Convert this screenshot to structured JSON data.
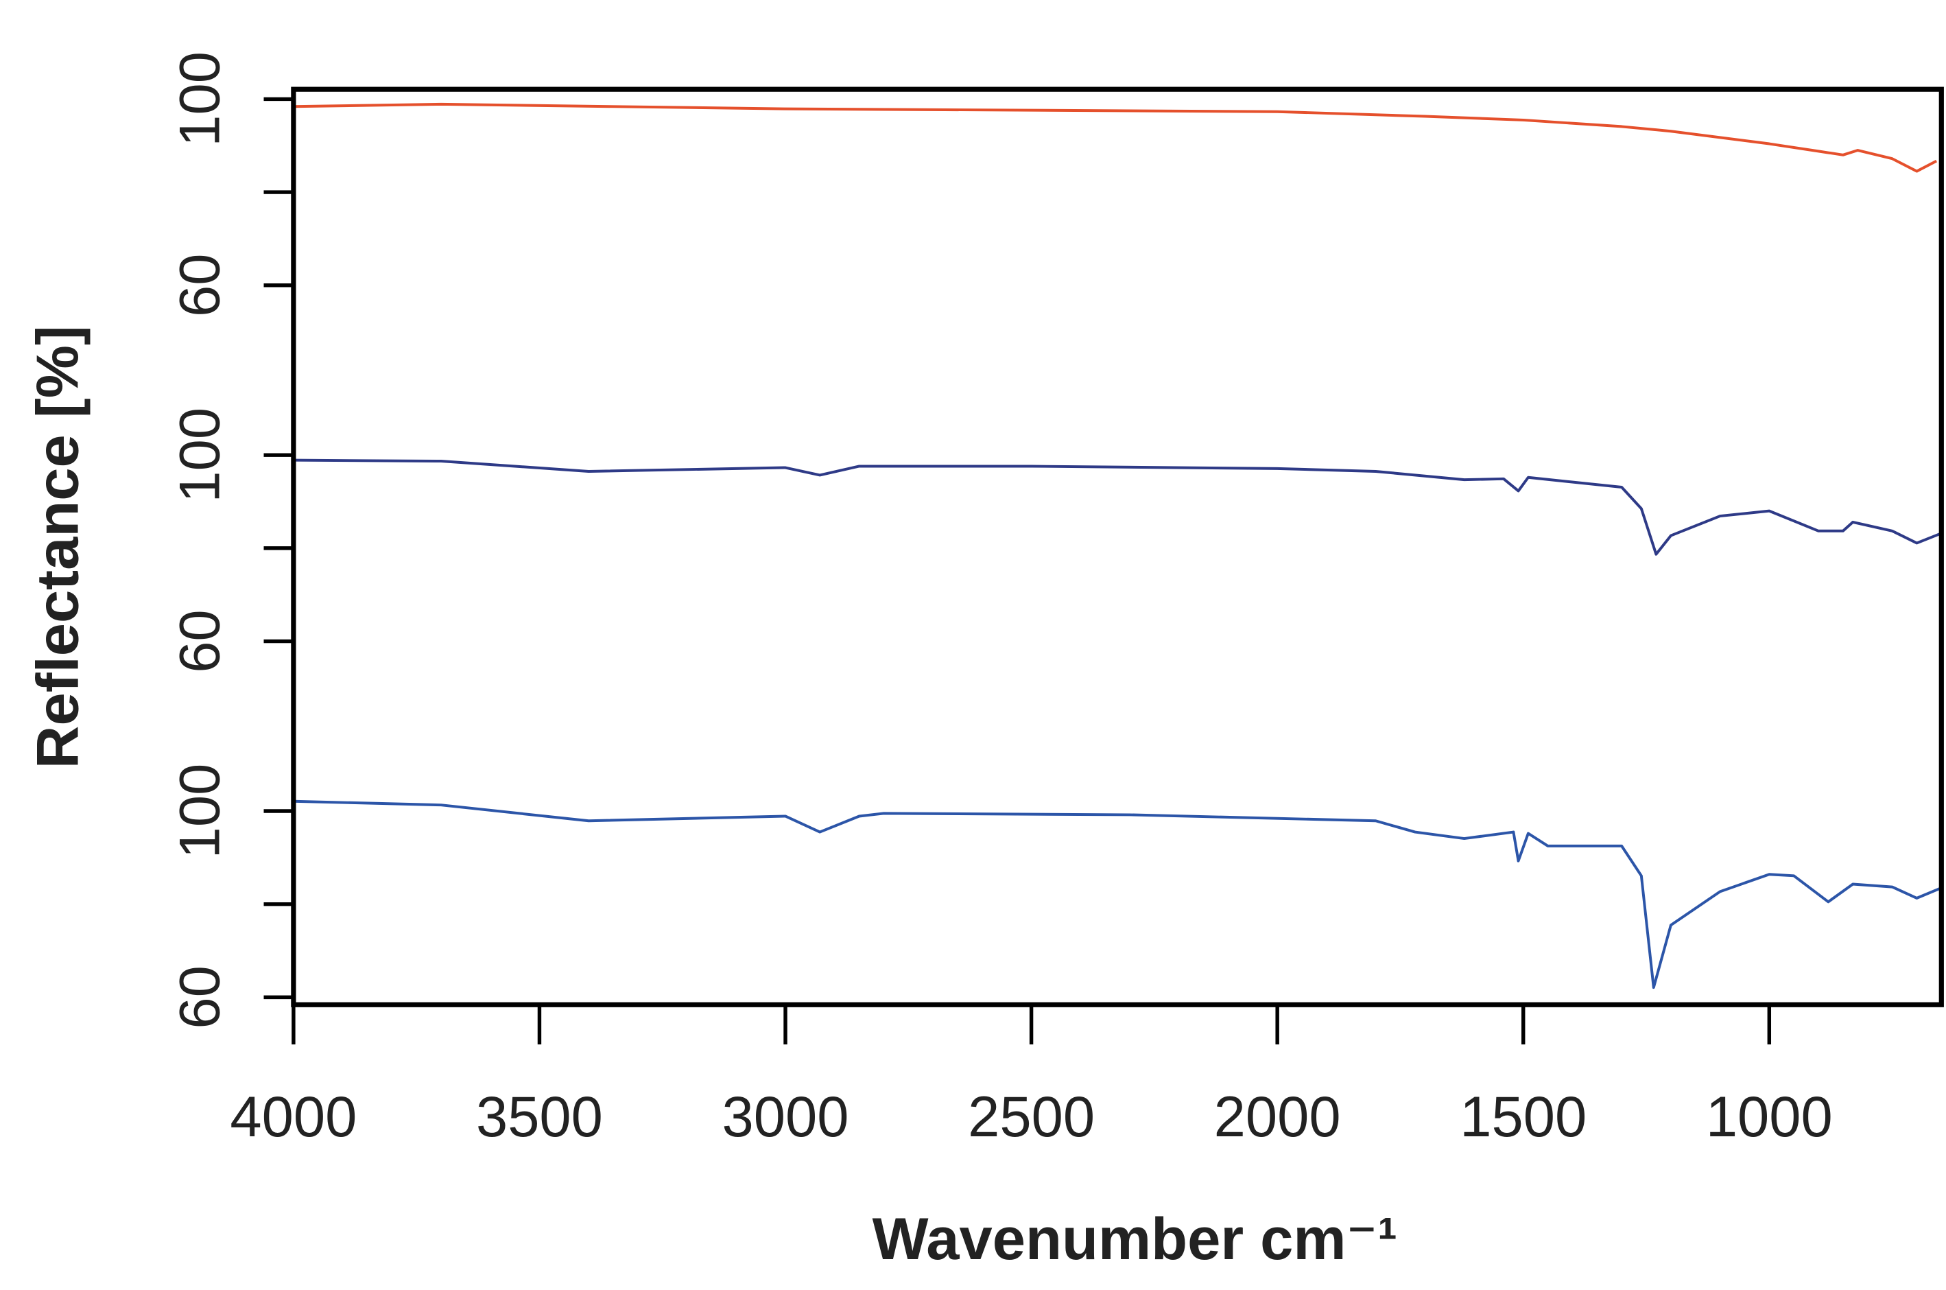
{
  "chart_data": [
    {
      "type": "line",
      "xlim": [
        4000,
        650
      ],
      "ylim": [
        58.4,
        102.1
      ],
      "yticks": [
        60,
        100
      ],
      "minor_yticks": [
        80
      ],
      "series": [
        {
          "color": "#e5502c",
          "x": [
            4000,
            3700,
            3000,
            2000,
            1700,
            1500,
            1300,
            1200,
            1000,
            900,
            850,
            820,
            750,
            700,
            660
          ],
          "values": [
            98.4,
            98.9,
            97.9,
            97.3,
            96.3,
            95.5,
            94.1,
            93.1,
            90.4,
            88.8,
            88.0,
            89.0,
            87.2,
            84.5,
            86.7
          ]
        }
      ]
    },
    {
      "type": "line",
      "ylabel": "Reflectance [%]",
      "xlim": [
        4000,
        650
      ],
      "ylim": [
        58.4,
        102.1
      ],
      "yticks": [
        60,
        100
      ],
      "minor_yticks": [
        80
      ],
      "series": [
        {
          "color": "#2e3a87",
          "x": [
            4000,
            3700,
            3400,
            3000,
            2930,
            2850,
            2500,
            2000,
            1800,
            1620,
            1540,
            1510,
            1490,
            1300,
            1260,
            1230,
            1200,
            1100,
            1000,
            900,
            850,
            830,
            750,
            700,
            650
          ],
          "values": [
            98.9,
            98.7,
            96.5,
            97.3,
            95.7,
            97.6,
            97.6,
            97.1,
            96.5,
            94.7,
            94.9,
            92.3,
            95.2,
            93.1,
            88.5,
            78.7,
            82.7,
            86.9,
            88.0,
            83.7,
            83.7,
            85.6,
            83.7,
            81.1,
            83.2
          ]
        }
      ]
    },
    {
      "type": "line",
      "xlabel": "Wavenumber cm⁻¹",
      "xlim": [
        4000,
        650
      ],
      "ylim": [
        58.4,
        102.1
      ],
      "yticks": [
        60,
        100
      ],
      "minor_yticks": [
        80
      ],
      "xticks": [
        4000,
        3500,
        3000,
        2500,
        2000,
        1500,
        1000
      ],
      "series": [
        {
          "color": "#2c55a8",
          "x": [
            4000,
            3700,
            3400,
            3000,
            2930,
            2850,
            2800,
            2300,
            1800,
            1720,
            1620,
            1520,
            1510,
            1490,
            1450,
            1300,
            1260,
            1235,
            1200,
            1100,
            1000,
            950,
            880,
            830,
            750,
            700,
            650
          ],
          "values": [
            102.1,
            101.3,
            97.9,
            98.9,
            95.5,
            98.9,
            99.5,
            99.2,
            97.9,
            95.5,
            94.1,
            95.5,
            89.3,
            95.2,
            92.5,
            92.5,
            86.1,
            62.1,
            75.5,
            82.7,
            86.4,
            86.1,
            80.5,
            84.3,
            83.7,
            81.3,
            83.5
          ]
        }
      ]
    }
  ]
}
